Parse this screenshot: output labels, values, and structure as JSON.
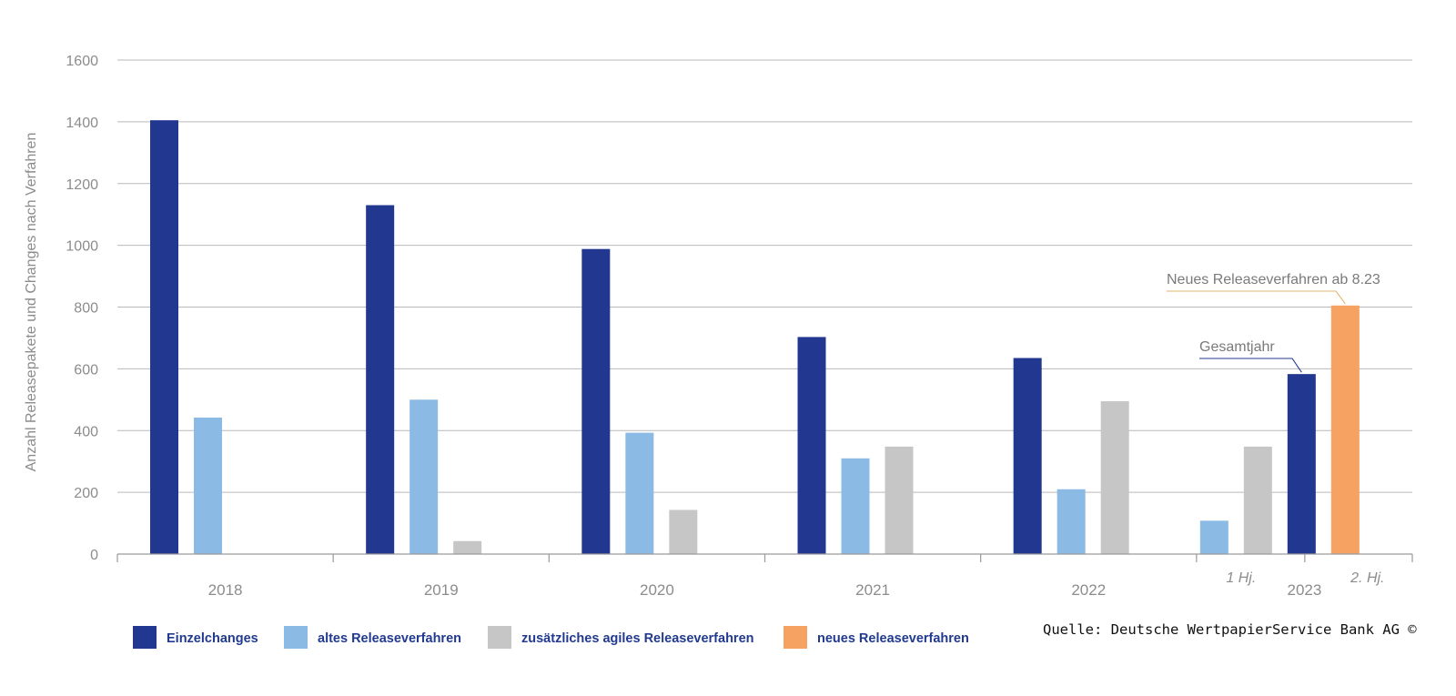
{
  "chart_data": {
    "type": "bar",
    "ylabel": "Anzahl Releasepakete und Changes nach Verfahren",
    "ylim": [
      0,
      1600
    ],
    "yticks": [
      0,
      200,
      400,
      600,
      800,
      1000,
      1200,
      1400,
      1600
    ],
    "grid": true,
    "categories": [
      "2018",
      "2019",
      "2020",
      "2021",
      "2022",
      "2023"
    ],
    "subcategories_2023": [
      "1 Hj.",
      "2. Hj."
    ],
    "colors": {
      "Einzelchanges": "#22378f",
      "altes Releaseverfahren": "#8bbae4",
      "zusätzliches agiles Releaseverfahren": "#c6c6c6",
      "neues Releaseverfahren": "#f5a262"
    },
    "series": [
      {
        "name": "Einzelchanges",
        "values": [
          1405,
          1130,
          988,
          703,
          635,
          null
        ]
      },
      {
        "name": "altes Releaseverfahren",
        "values": [
          442,
          500,
          393,
          310,
          210,
          108
        ]
      },
      {
        "name": "zusätzliches agiles Releaseverfahren",
        "values": [
          null,
          42,
          143,
          348,
          495,
          348
        ]
      }
    ],
    "extra_bars_2023": [
      {
        "series": "Einzelchanges",
        "value": 583,
        "annotation": "Gesamtjahr"
      },
      {
        "series": "neues Releaseverfahren",
        "value": 805,
        "annotation": "Neues Releaseverfahren ab 8.23"
      }
    ],
    "legend": {
      "placement": "bottom-left",
      "entries": [
        "Einzelchanges",
        "altes Releaseverfahren",
        "zusätzliches agiles Releaseverfahren",
        "neues Releaseverfahren"
      ]
    },
    "source": "Quelle: Deutsche WertpapierService Bank AG ©"
  }
}
